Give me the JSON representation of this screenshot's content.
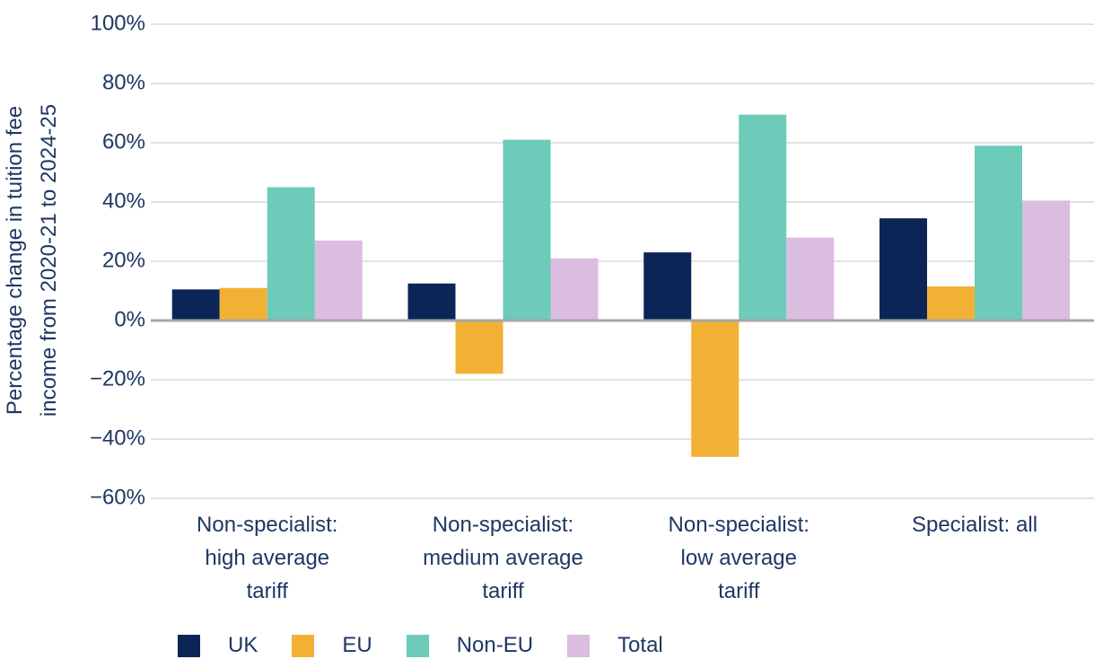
{
  "chart_data": {
    "type": "bar",
    "y_label": "Percentage change in tuition fee\nincome from 2020-21 to 2024-25",
    "categories": [
      "Non-specialist:\nhigh average\ntariff",
      "Non-specialist:\nmedium average\ntariff",
      "Non-specialist:\nlow average\ntariff",
      "Specialist: all"
    ],
    "series": [
      {
        "name": "UK",
        "color": "#0b2556",
        "values": [
          10.5,
          12.5,
          23,
          34.5
        ]
      },
      {
        "name": "EU",
        "color": "#f2b134",
        "values": [
          11,
          -18,
          -46,
          11.5
        ]
      },
      {
        "name": "Non-EU",
        "color": "#6ccbb9",
        "values": [
          45,
          61,
          69.5,
          59
        ]
      },
      {
        "name": "Total",
        "color": "#dabddf",
        "values": [
          27,
          21,
          28,
          40.5
        ]
      }
    ],
    "ylim": [
      -60,
      100
    ],
    "yticks": [
      {
        "value": -60,
        "label": "−60%"
      },
      {
        "value": -40,
        "label": "−40%"
      },
      {
        "value": -20,
        "label": "−20%"
      },
      {
        "value": 0,
        "label": "0%"
      },
      {
        "value": 20,
        "label": "20%"
      },
      {
        "value": 40,
        "label": "40%"
      },
      {
        "value": 60,
        "label": "60%"
      },
      {
        "value": 80,
        "label": "80%"
      },
      {
        "value": 100,
        "label": "100%"
      }
    ],
    "grid": true
  }
}
